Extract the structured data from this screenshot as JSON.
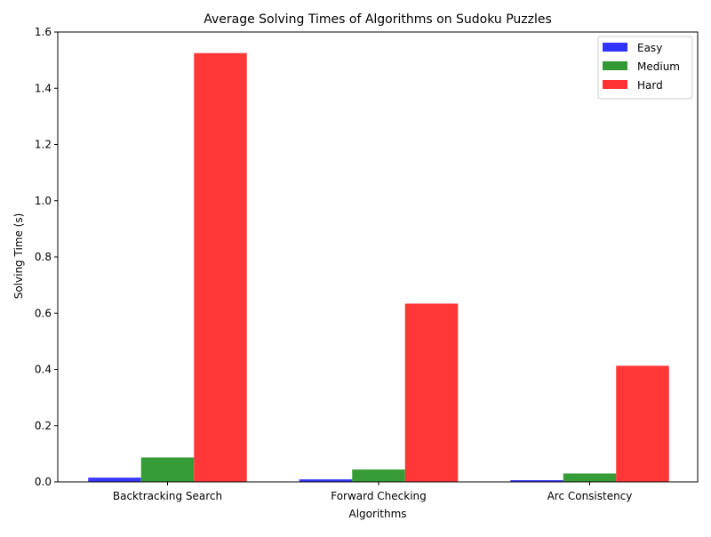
{
  "chart_data": {
    "type": "bar",
    "title": "Average Solving Times of Algorithms on Sudoku Puzzles",
    "xlabel": "Algorithms",
    "ylabel": "Solving Time (s)",
    "categories": [
      "Backtracking Search",
      "Forward Checking",
      "Arc Consistency"
    ],
    "series": [
      {
        "name": "Easy",
        "color": "#3333ff",
        "values": [
          0.015,
          0.009,
          0.006
        ]
      },
      {
        "name": "Medium",
        "color": "#339933",
        "values": [
          0.087,
          0.044,
          0.03
        ]
      },
      {
        "name": "Hard",
        "color": "#ff3333",
        "values": [
          1.525,
          0.634,
          0.413
        ]
      }
    ],
    "ylim": [
      0,
      1.6
    ],
    "yticks": [
      "0.0",
      "0.2",
      "0.4",
      "0.6",
      "0.8",
      "1.0",
      "1.2",
      "1.4",
      "1.6"
    ],
    "grid": false,
    "legend_position": "top-right"
  }
}
